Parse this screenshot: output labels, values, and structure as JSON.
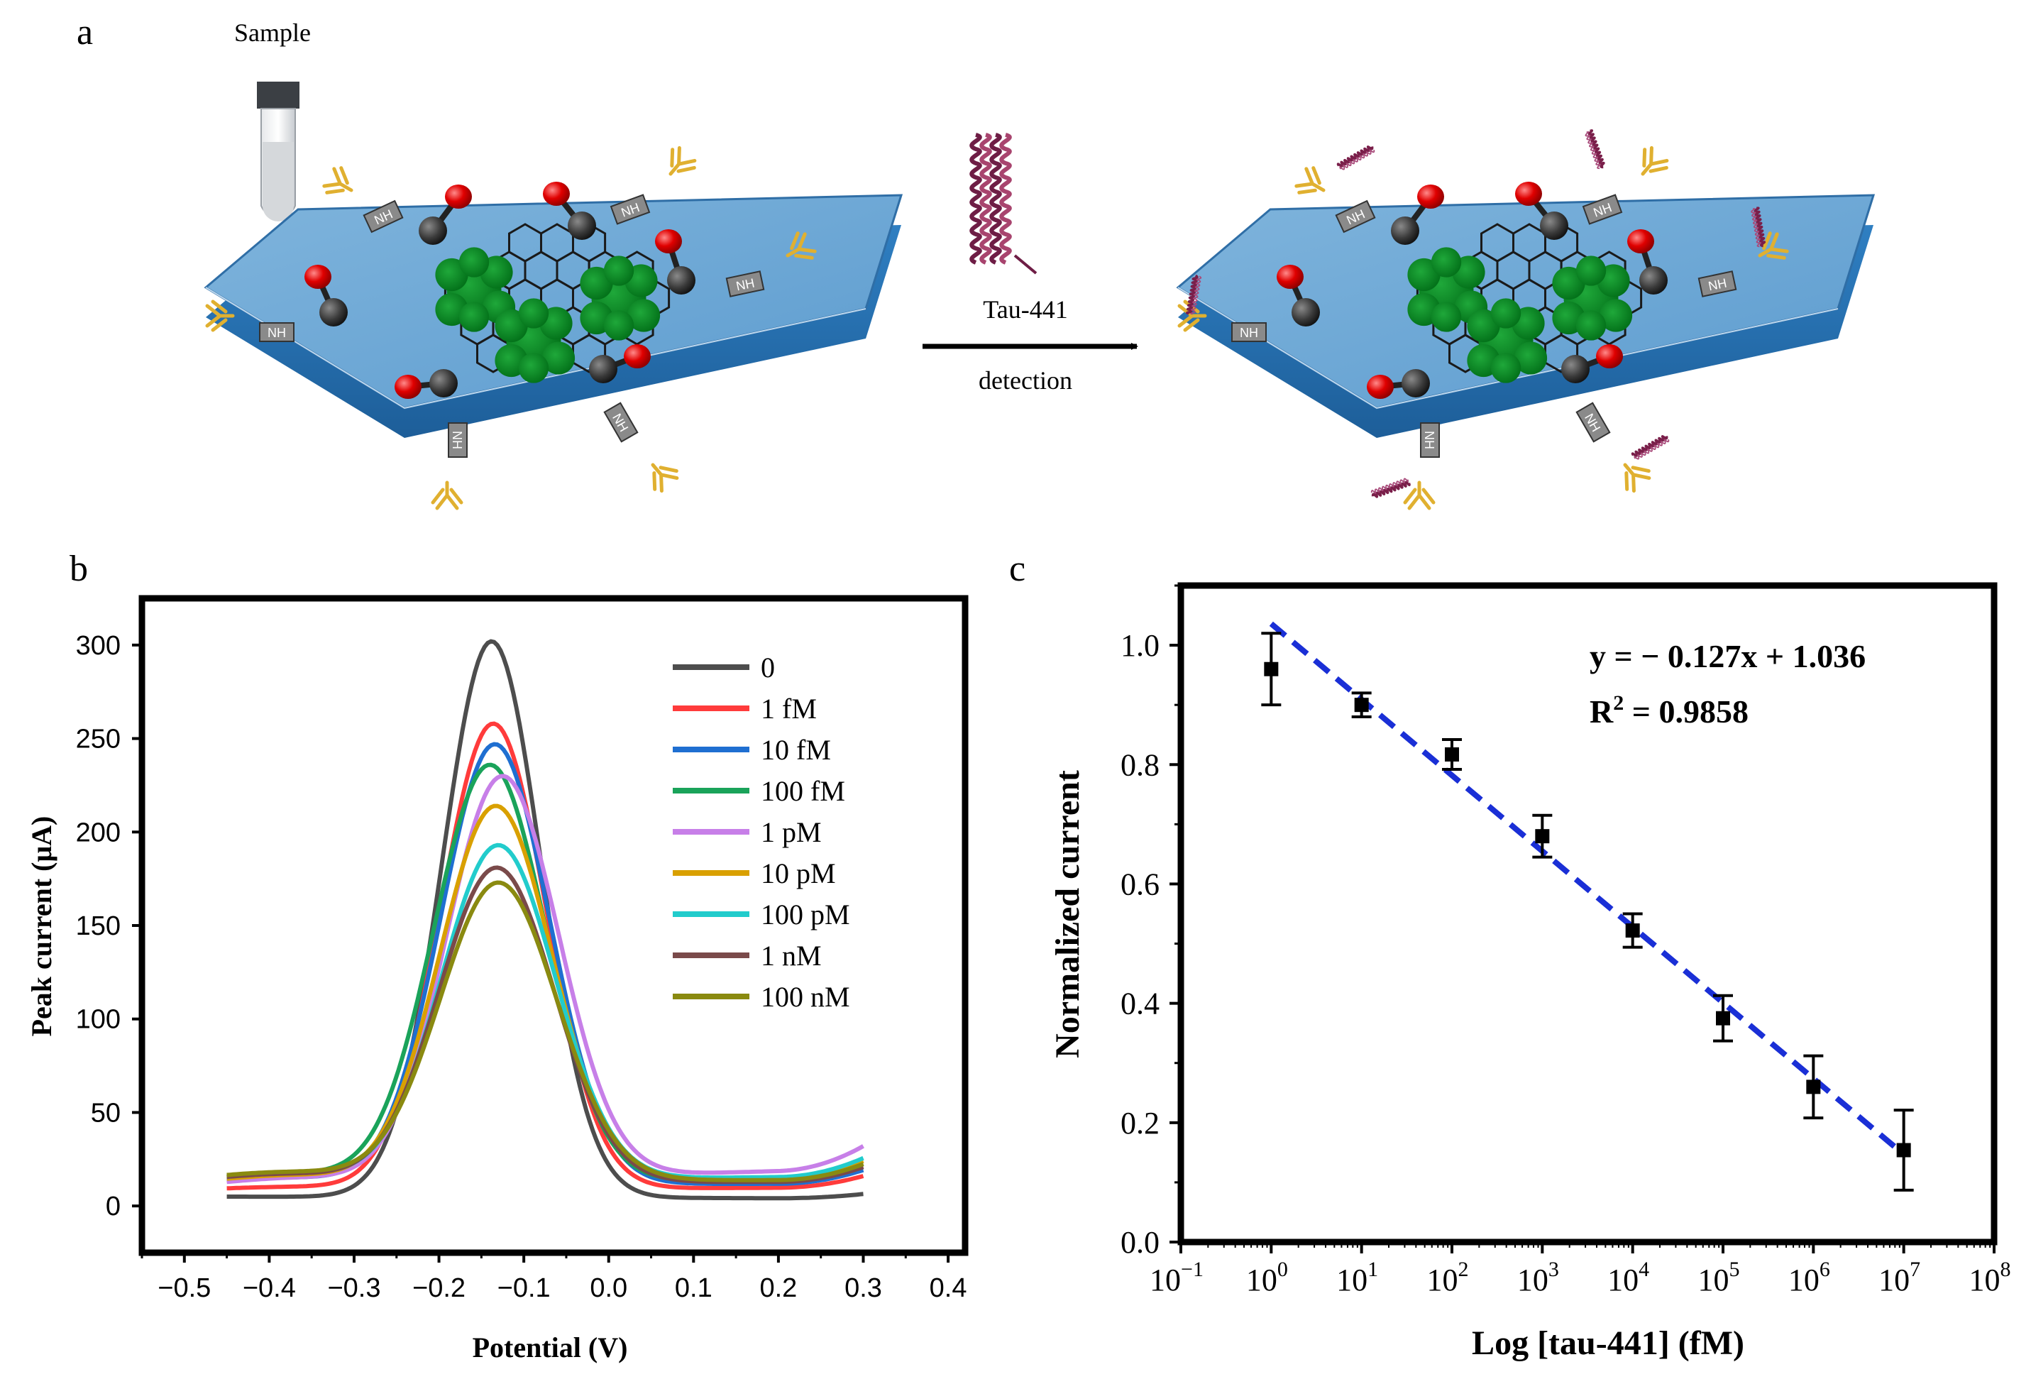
{
  "panels": {
    "a": {
      "label": "a",
      "sample_label": "Sample",
      "protein_label": "Tau-441",
      "arrow_label": "detection",
      "linker_label": "NH"
    },
    "b": {
      "label": "b"
    },
    "c": {
      "label": "c"
    }
  },
  "chart_data": [
    {
      "id": "b",
      "type": "line",
      "title": "",
      "xlabel": "Potential (V)",
      "ylabel": "Peak current (μA)",
      "xlim": [
        -0.55,
        0.42
      ],
      "ylim": [
        -25,
        325
      ],
      "xticks": [
        -0.5,
        -0.4,
        -0.3,
        -0.2,
        -0.1,
        0.0,
        0.1,
        0.2,
        0.3,
        0.4
      ],
      "xtick_labels": [
        "−0.5",
        "−0.4",
        "−0.3",
        "−0.2",
        "−0.1",
        "0.0",
        "0.1",
        "0.2",
        "0.3",
        "0.4"
      ],
      "yticks": [
        0,
        50,
        100,
        150,
        200,
        250,
        300
      ],
      "ytick_labels": [
        "0",
        "50",
        "100",
        "150",
        "200",
        "250",
        "300"
      ],
      "legend_position": "top-right",
      "x_range": [
        -0.45,
        0.3
      ],
      "series": [
        {
          "name": "0",
          "color": "#4d4d4d",
          "peak_x": -0.138,
          "peak": 302,
          "width": 0.058,
          "baseline_left": 5,
          "baseline_right": 4,
          "shoulder": 0
        },
        {
          "name": "1 fM",
          "color": "#ff3b3b",
          "peak_x": -0.136,
          "peak": 258,
          "width": 0.062,
          "baseline_left": 8,
          "baseline_right": 10,
          "shoulder": 2
        },
        {
          "name": "10 fM",
          "color": "#1f6fd1",
          "peak_x": -0.134,
          "peak": 247,
          "width": 0.064,
          "baseline_left": 11,
          "baseline_right": 12,
          "shoulder": 4
        },
        {
          "name": "100  fM",
          "color": "#1aa35a",
          "peak_x": -0.14,
          "peak": 236,
          "width": 0.066,
          "baseline_left": 12,
          "baseline_right": 14,
          "shoulder": 5
        },
        {
          "name": "1 pM",
          "color": "#c77fe8",
          "peak_x": -0.125,
          "peak": 230,
          "width": 0.066,
          "baseline_left": 10,
          "baseline_right": 20,
          "shoulder": 4
        },
        {
          "name": "10 pM",
          "color": "#d9a000",
          "peak_x": -0.133,
          "peak": 214,
          "width": 0.066,
          "baseline_left": 11,
          "baseline_right": 15,
          "shoulder": 5
        },
        {
          "name": "100 pM",
          "color": "#22cccc",
          "peak_x": -0.13,
          "peak": 193,
          "width": 0.067,
          "baseline_left": 12,
          "baseline_right": 16,
          "shoulder": 5
        },
        {
          "name": "1 nM",
          "color": "#7a4a4a",
          "peak_x": -0.132,
          "peak": 181,
          "width": 0.068,
          "baseline_left": 12,
          "baseline_right": 13,
          "shoulder": 5
        },
        {
          "name": "100 nM",
          "color": "#8a8a10",
          "peak_x": -0.13,
          "peak": 173,
          "width": 0.069,
          "baseline_left": 13,
          "baseline_right": 14,
          "shoulder": 5
        }
      ]
    },
    {
      "id": "c",
      "type": "scatter",
      "title": "",
      "xlabel": "Log [tau-441] (fM)",
      "ylabel": "Normalized current",
      "xscale": "log",
      "xlim_exp": [
        -1,
        8
      ],
      "ylim": [
        0,
        1.1
      ],
      "yticks": [
        0.0,
        0.2,
        0.4,
        0.6,
        0.8,
        1.0
      ],
      "ytick_labels": [
        "0.0",
        "0.2",
        "0.4",
        "0.6",
        "0.8",
        "1.0"
      ],
      "xtick_exponents": [
        "−1",
        "0",
        "1",
        "2",
        "3",
        "4",
        "5",
        "6",
        "7",
        "8"
      ],
      "xtick_base": "10",
      "x_exp": [
        0,
        1,
        2,
        3,
        4,
        5,
        6,
        7
      ],
      "y": [
        0.96,
        0.9,
        0.817,
        0.68,
        0.522,
        0.375,
        0.26,
        0.154
      ],
      "err": [
        0.06,
        0.02,
        0.025,
        0.035,
        0.028,
        0.038,
        0.052,
        0.067
      ],
      "fit": {
        "slope": -0.127,
        "intercept": 1.036,
        "x_from": 0,
        "x_to": 7,
        "color": "#1a2fd6"
      },
      "equation_text": "y = − 0.127x + 1.036",
      "r2_label": "R",
      "r2_sup": "2",
      "r2_value": " = 0.9858"
    }
  ]
}
